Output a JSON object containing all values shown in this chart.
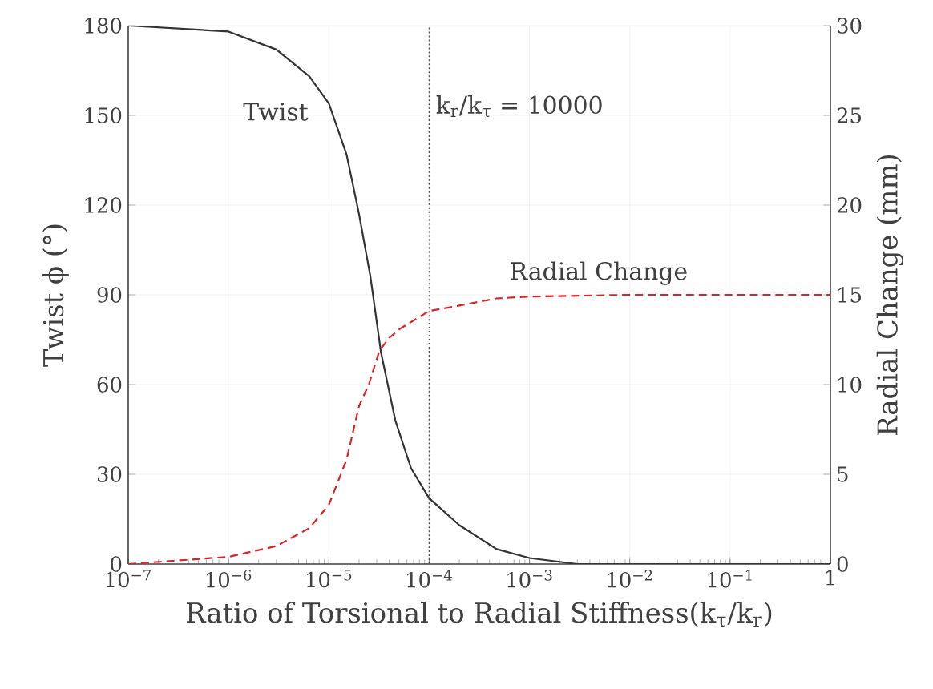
{
  "chart_data": {
    "type": "line",
    "xlabel": "Ratio of Torsional to Radial Stiffness(k$_{τ}$/k$_{r}$)",
    "ylabel": "Twist ϕ (°)",
    "y2label": "Radial Change (mm)",
    "log": "x",
    "grid": true,
    "xlim": [
      1e-07,
      1
    ],
    "xticks": [
      {
        "value": 1e-07,
        "label": "10$^{−7}$"
      },
      {
        "value": 1e-06,
        "label": "10$^{−6}$"
      },
      {
        "value": 1e-05,
        "label": "10$^{−5}$"
      },
      {
        "value": 0.0001,
        "label": "10$^{−4}$"
      },
      {
        "value": 0.001,
        "label": "10$^{−3}$"
      },
      {
        "value": 0.01,
        "label": "10$^{−2}$"
      },
      {
        "value": 0.1,
        "label": "10$^{−1}$"
      },
      1
    ],
    "ylim": [
      0,
      180
    ],
    "yticks": [
      0,
      30,
      60,
      90,
      120,
      150,
      180
    ],
    "y2lim": [
      0,
      30
    ],
    "y2ticks": [
      0,
      5,
      10,
      15,
      20,
      25,
      30
    ],
    "series": [
      {
        "name": "Twist",
        "color": "#333333",
        "line_style": "solid",
        "x": [
          1e-07,
          1e-06,
          3e-06,
          6.4e-06,
          1e-05,
          1.5e-05,
          2e-05,
          2.6e-05,
          3.3e-05,
          4.6e-05,
          6.6e-05,
          0.0001,
          0.0002,
          0.00047,
          0.001,
          0.003,
          0.01,
          1
        ],
        "values": [
          180,
          178,
          172,
          163,
          154,
          137,
          117,
          96,
          71,
          48,
          32,
          22,
          13,
          5,
          2,
          0,
          0,
          0
        ]
      },
      {
        "name": "Radial Change",
        "color": "#d62728",
        "line_style": "dashed",
        "axis": "y2",
        "x": [
          1e-07,
          1e-06,
          3e-06,
          6.4e-06,
          1e-05,
          1.5e-05,
          2e-05,
          2.5e-05,
          3.2e-05,
          4e-05,
          5.1e-05,
          0.0001,
          0.0002,
          0.00047,
          0.001,
          0.01,
          1
        ],
        "values": [
          0,
          0.4,
          1,
          2,
          3.3,
          5.8,
          8.8,
          10,
          11.9,
          12.6,
          13.1,
          14.1,
          14.4,
          14.8,
          14.9,
          15,
          15
        ]
      }
    ],
    "ref_lines": [
      {
        "axis": "x",
        "value": 0.0001,
        "color": "#555555",
        "line_style": "dotted"
      }
    ],
    "annotations": [
      "k$_{r}$/k$_{τ}$ = 10000"
    ]
  }
}
